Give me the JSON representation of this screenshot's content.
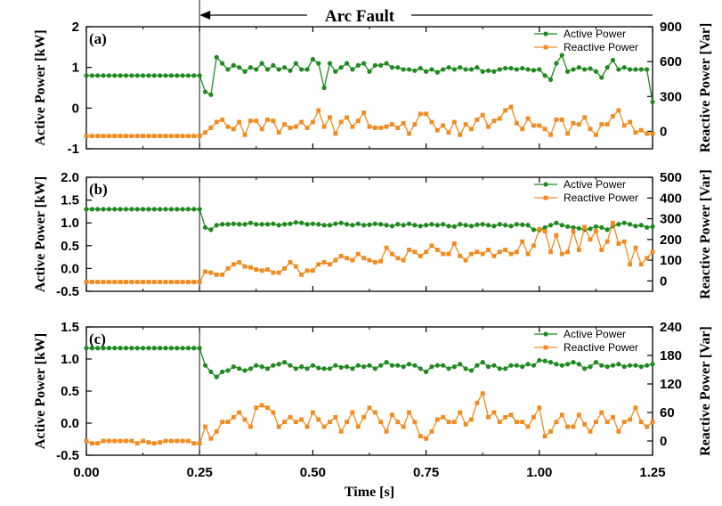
{
  "figure": {
    "arc_fault_label": "Arc Fault",
    "x_axis_label": "Time [s]",
    "fault_time": 0.25
  },
  "colors": {
    "active": "#1f8a1f",
    "reactive": "#f28a1e",
    "axis": "#000000"
  },
  "legend": {
    "active": "Active Power",
    "reactive": "Reactive Power"
  },
  "chart_data": [
    {
      "type": "line",
      "panel_label": "(a)",
      "xlabel": "Time [s]",
      "ylabel": "Active Power [kW]",
      "ylabel_right": "Reactive Power [Var]",
      "xlim": [
        0,
        1.25
      ],
      "ylim": [
        -1,
        2
      ],
      "ylim_right": [
        -150,
        900
      ],
      "x_ticks": [
        "0.00",
        "0.25",
        "0.50",
        "0.75",
        "1.00",
        "1.25"
      ],
      "y_ticks": [
        "-1",
        "0",
        "1",
        "2"
      ],
      "y_ticks_right": [
        "0",
        "300",
        "600",
        "900"
      ],
      "x": [
        0.0,
        0.0125,
        0.025,
        0.0375,
        0.05,
        0.0625,
        0.075,
        0.0875,
        0.1,
        0.1125,
        0.125,
        0.1375,
        0.15,
        0.1625,
        0.175,
        0.1875,
        0.2,
        0.2125,
        0.225,
        0.2375,
        0.25,
        0.2625,
        0.275,
        0.2875,
        0.3,
        0.3125,
        0.325,
        0.3375,
        0.35,
        0.3625,
        0.375,
        0.3875,
        0.4,
        0.4125,
        0.425,
        0.4375,
        0.45,
        0.4625,
        0.475,
        0.4875,
        0.5,
        0.5125,
        0.525,
        0.5375,
        0.55,
        0.5625,
        0.575,
        0.5875,
        0.6,
        0.6125,
        0.625,
        0.6375,
        0.65,
        0.6625,
        0.675,
        0.6875,
        0.7,
        0.7125,
        0.725,
        0.7375,
        0.75,
        0.7625,
        0.775,
        0.7875,
        0.8,
        0.8125,
        0.825,
        0.8375,
        0.85,
        0.8625,
        0.875,
        0.8875,
        0.9,
        0.9125,
        0.925,
        0.9375,
        0.95,
        0.9625,
        0.975,
        0.9875,
        1.0,
        1.0125,
        1.025,
        1.0375,
        1.05,
        1.0625,
        1.075,
        1.0875,
        1.1,
        1.1125,
        1.125,
        1.1375,
        1.15,
        1.1625,
        1.175,
        1.1875,
        1.2,
        1.2125,
        1.225,
        1.2375,
        1.25
      ],
      "series": [
        {
          "name": "Active Power",
          "axis": "left",
          "values": [
            0.8,
            0.8,
            0.8,
            0.8,
            0.8,
            0.8,
            0.8,
            0.8,
            0.8,
            0.8,
            0.8,
            0.8,
            0.8,
            0.8,
            0.8,
            0.8,
            0.8,
            0.8,
            0.8,
            0.8,
            0.8,
            0.4,
            0.33,
            1.25,
            1.1,
            0.95,
            1.05,
            1.0,
            0.9,
            1.0,
            0.95,
            1.1,
            0.95,
            1.05,
            0.95,
            1.0,
            0.92,
            1.1,
            0.95,
            0.95,
            1.2,
            1.1,
            0.5,
            1.1,
            0.9,
            1.0,
            1.1,
            0.95,
            1.05,
            1.1,
            0.9,
            1.05,
            1.05,
            1.1,
            1.0,
            1.0,
            0.95,
            0.95,
            0.92,
            0.98,
            0.9,
            0.95,
            0.88,
            0.95,
            1.0,
            0.95,
            1.0,
            0.95,
            0.95,
            1.0,
            0.9,
            0.92,
            0.9,
            0.95,
            0.98,
            0.98,
            0.95,
            0.98,
            0.95,
            0.93,
            0.95,
            0.8,
            0.7,
            1.1,
            1.3,
            0.9,
            0.95,
            1.0,
            0.95,
            0.97,
            0.9,
            0.75,
            1.0,
            1.18,
            0.95,
            1.0,
            0.95,
            0.95,
            0.95,
            0.95,
            0.15
          ],
          "color": "#1f8a1f"
        },
        {
          "name": "Reactive Power",
          "axis": "right",
          "values": [
            -40,
            -40,
            -40,
            -40,
            -40,
            -40,
            -40,
            -40,
            -40,
            -40,
            -40,
            -40,
            -40,
            -40,
            -40,
            -40,
            -40,
            -40,
            -40,
            -40,
            -40,
            -10,
            30,
            80,
            100,
            40,
            20,
            80,
            -30,
            90,
            90,
            20,
            100,
            90,
            -10,
            60,
            30,
            40,
            80,
            30,
            80,
            180,
            40,
            120,
            -20,
            80,
            120,
            40,
            90,
            160,
            40,
            30,
            30,
            40,
            60,
            30,
            70,
            -20,
            60,
            150,
            150,
            80,
            10,
            50,
            -10,
            80,
            -30,
            60,
            20,
            100,
            140,
            40,
            90,
            110,
            180,
            210,
            70,
            20,
            110,
            50,
            50,
            20,
            -30,
            100,
            100,
            -20,
            70,
            60,
            120,
            20,
            -30,
            60,
            60,
            130,
            180,
            50,
            80,
            -10,
            10,
            -20,
            -20
          ],
          "color": "#f28a1e"
        }
      ]
    },
    {
      "type": "line",
      "panel_label": "(b)",
      "xlabel": "Time [s]",
      "ylabel": "Active Power [kW]",
      "ylabel_right": "Reactive Power [Var]",
      "xlim": [
        0,
        1.25
      ],
      "ylim": [
        -0.5,
        2.0
      ],
      "ylim_right": [
        -50,
        500
      ],
      "x_ticks": [
        "0.00",
        "0.25",
        "0.50",
        "0.75",
        "1.00",
        "1.25"
      ],
      "y_ticks": [
        "-0.5",
        "0.0",
        "0.5",
        "1.0",
        "1.5",
        "2.0"
      ],
      "y_ticks_right": [
        "0",
        "100",
        "200",
        "300",
        "400",
        "500"
      ],
      "x": [
        0.0,
        0.0125,
        0.025,
        0.0375,
        0.05,
        0.0625,
        0.075,
        0.0875,
        0.1,
        0.1125,
        0.125,
        0.1375,
        0.15,
        0.1625,
        0.175,
        0.1875,
        0.2,
        0.2125,
        0.225,
        0.2375,
        0.25,
        0.2625,
        0.275,
        0.2875,
        0.3,
        0.3125,
        0.325,
        0.3375,
        0.35,
        0.3625,
        0.375,
        0.3875,
        0.4,
        0.4125,
        0.425,
        0.4375,
        0.45,
        0.4625,
        0.475,
        0.4875,
        0.5,
        0.5125,
        0.525,
        0.5375,
        0.55,
        0.5625,
        0.575,
        0.5875,
        0.6,
        0.6125,
        0.625,
        0.6375,
        0.65,
        0.6625,
        0.675,
        0.6875,
        0.7,
        0.7125,
        0.725,
        0.7375,
        0.75,
        0.7625,
        0.775,
        0.7875,
        0.8,
        0.8125,
        0.825,
        0.8375,
        0.85,
        0.8625,
        0.875,
        0.8875,
        0.9,
        0.9125,
        0.925,
        0.9375,
        0.95,
        0.9625,
        0.975,
        0.9875,
        1.0,
        1.0125,
        1.025,
        1.0375,
        1.05,
        1.0625,
        1.075,
        1.0875,
        1.1,
        1.1125,
        1.125,
        1.1375,
        1.15,
        1.1625,
        1.175,
        1.1875,
        1.2,
        1.2125,
        1.225,
        1.2375,
        1.25
      ],
      "series": [
        {
          "name": "Active Power",
          "axis": "left",
          "values": [
            1.3,
            1.3,
            1.3,
            1.3,
            1.3,
            1.3,
            1.3,
            1.3,
            1.3,
            1.3,
            1.3,
            1.3,
            1.3,
            1.3,
            1.3,
            1.3,
            1.3,
            1.3,
            1.3,
            1.3,
            1.3,
            0.9,
            0.85,
            0.95,
            0.97,
            0.97,
            0.98,
            0.97,
            0.97,
            1.0,
            0.97,
            0.97,
            0.97,
            0.98,
            0.95,
            0.97,
            0.98,
            1.01,
            1.0,
            0.97,
            0.98,
            0.97,
            0.95,
            0.95,
            0.98,
            1.0,
            0.97,
            0.95,
            0.98,
            0.95,
            0.96,
            0.98,
            0.97,
            0.95,
            0.93,
            0.97,
            0.95,
            0.98,
            0.95,
            0.93,
            0.95,
            0.97,
            0.95,
            0.97,
            0.93,
            0.92,
            0.97,
            0.95,
            0.93,
            0.96,
            0.97,
            0.95,
            0.93,
            0.97,
            0.95,
            0.93,
            0.97,
            0.96,
            0.95,
            0.85,
            0.84,
            0.9,
            0.95,
            1.0,
            0.95,
            0.92,
            0.9,
            0.88,
            0.85,
            0.87,
            0.92,
            0.9,
            0.85,
            0.93,
            0.97,
            1.0,
            0.97,
            0.93,
            0.95,
            0.9,
            0.92
          ],
          "color": "#1f8a1f"
        },
        {
          "name": "Reactive Power",
          "axis": "right",
          "values": [
            -5,
            -5,
            -5,
            -5,
            -5,
            -5,
            -5,
            -5,
            -5,
            -5,
            -5,
            -5,
            -5,
            -5,
            -5,
            -5,
            -5,
            -5,
            -5,
            -5,
            -5,
            45,
            40,
            30,
            30,
            60,
            80,
            90,
            70,
            65,
            55,
            50,
            55,
            40,
            40,
            60,
            90,
            70,
            30,
            50,
            50,
            80,
            90,
            80,
            100,
            120,
            110,
            100,
            130,
            110,
            100,
            90,
            95,
            160,
            130,
            110,
            100,
            150,
            140,
            120,
            140,
            170,
            150,
            130,
            130,
            180,
            120,
            100,
            130,
            140,
            130,
            150,
            120,
            140,
            150,
            130,
            140,
            190,
            130,
            170,
            250,
            240,
            140,
            220,
            130,
            140,
            240,
            150,
            260,
            200,
            240,
            150,
            190,
            280,
            180,
            190,
            80,
            160,
            80,
            110,
            140
          ],
          "color": "#f28a1e"
        }
      ]
    },
    {
      "type": "line",
      "panel_label": "(c)",
      "xlabel": "Time [s]",
      "ylabel": "Active Power [kW]",
      "ylabel_right": "Reactive Power [Var]",
      "xlim": [
        0,
        1.25
      ],
      "ylim": [
        -0.5,
        1.5
      ],
      "ylim_right": [
        -30,
        240
      ],
      "x_ticks": [
        "0.00",
        "0.25",
        "0.50",
        "0.75",
        "1.00",
        "1.25"
      ],
      "y_ticks": [
        "-0.5",
        "0.0",
        "0.5",
        "1.0",
        "1.5"
      ],
      "y_ticks_right": [
        "0",
        "60",
        "120",
        "180",
        "240"
      ],
      "x": [
        0.0,
        0.0125,
        0.025,
        0.0375,
        0.05,
        0.0625,
        0.075,
        0.0875,
        0.1,
        0.1125,
        0.125,
        0.1375,
        0.15,
        0.1625,
        0.175,
        0.1875,
        0.2,
        0.2125,
        0.225,
        0.2375,
        0.25,
        0.2625,
        0.275,
        0.2875,
        0.3,
        0.3125,
        0.325,
        0.3375,
        0.35,
        0.3625,
        0.375,
        0.3875,
        0.4,
        0.4125,
        0.425,
        0.4375,
        0.45,
        0.4625,
        0.475,
        0.4875,
        0.5,
        0.5125,
        0.525,
        0.5375,
        0.55,
        0.5625,
        0.575,
        0.5875,
        0.6,
        0.6125,
        0.625,
        0.6375,
        0.65,
        0.6625,
        0.675,
        0.6875,
        0.7,
        0.7125,
        0.725,
        0.7375,
        0.75,
        0.7625,
        0.775,
        0.7875,
        0.8,
        0.8125,
        0.825,
        0.8375,
        0.85,
        0.8625,
        0.875,
        0.8875,
        0.9,
        0.9125,
        0.925,
        0.9375,
        0.95,
        0.9625,
        0.975,
        0.9875,
        1.0,
        1.0125,
        1.025,
        1.0375,
        1.05,
        1.0625,
        1.075,
        1.0875,
        1.1,
        1.1125,
        1.125,
        1.1375,
        1.15,
        1.1625,
        1.175,
        1.1875,
        1.2,
        1.2125,
        1.225,
        1.2375,
        1.25
      ],
      "series": [
        {
          "name": "Active Power",
          "axis": "left",
          "values": [
            1.17,
            1.17,
            1.17,
            1.17,
            1.17,
            1.17,
            1.17,
            1.17,
            1.17,
            1.17,
            1.17,
            1.17,
            1.17,
            1.17,
            1.17,
            1.17,
            1.17,
            1.17,
            1.17,
            1.17,
            1.17,
            0.9,
            0.8,
            0.72,
            0.8,
            0.82,
            0.88,
            0.85,
            0.82,
            0.85,
            0.9,
            0.88,
            0.85,
            0.9,
            0.92,
            0.95,
            0.9,
            0.85,
            0.88,
            0.85,
            0.9,
            0.86,
            0.85,
            0.85,
            0.9,
            0.87,
            0.88,
            0.85,
            0.9,
            0.88,
            0.9,
            0.85,
            0.9,
            0.95,
            0.9,
            0.9,
            0.88,
            0.92,
            0.9,
            0.85,
            0.8,
            0.88,
            0.9,
            0.9,
            0.85,
            0.88,
            0.92,
            0.85,
            0.82,
            0.9,
            0.95,
            0.88,
            0.9,
            0.85,
            0.85,
            0.9,
            0.9,
            0.88,
            0.92,
            0.9,
            0.98,
            0.97,
            0.95,
            0.92,
            0.9,
            0.92,
            0.95,
            0.92,
            0.85,
            0.88,
            0.95,
            0.9,
            0.88,
            0.9,
            0.92,
            0.88,
            0.9,
            0.9,
            0.88,
            0.9,
            0.92
          ],
          "color": "#1f8a1f"
        },
        {
          "name": "Reactive Power",
          "axis": "right",
          "values": [
            0,
            -5,
            -5,
            0,
            0,
            0,
            0,
            0,
            0,
            -5,
            0,
            -3,
            -5,
            -3,
            0,
            0,
            0,
            0,
            0,
            -5,
            -5,
            30,
            5,
            20,
            40,
            40,
            50,
            60,
            45,
            30,
            70,
            75,
            70,
            60,
            30,
            40,
            50,
            40,
            45,
            30,
            60,
            45,
            30,
            40,
            50,
            20,
            40,
            60,
            30,
            50,
            70,
            60,
            40,
            20,
            55,
            40,
            30,
            60,
            40,
            10,
            5,
            20,
            45,
            50,
            40,
            40,
            60,
            35,
            45,
            80,
            100,
            50,
            60,
            40,
            50,
            55,
            40,
            40,
            30,
            50,
            70,
            10,
            20,
            40,
            55,
            30,
            30,
            55,
            35,
            20,
            40,
            60,
            40,
            50,
            20,
            40,
            45,
            70,
            40,
            30,
            40
          ],
          "color": "#f28a1e"
        }
      ]
    }
  ]
}
